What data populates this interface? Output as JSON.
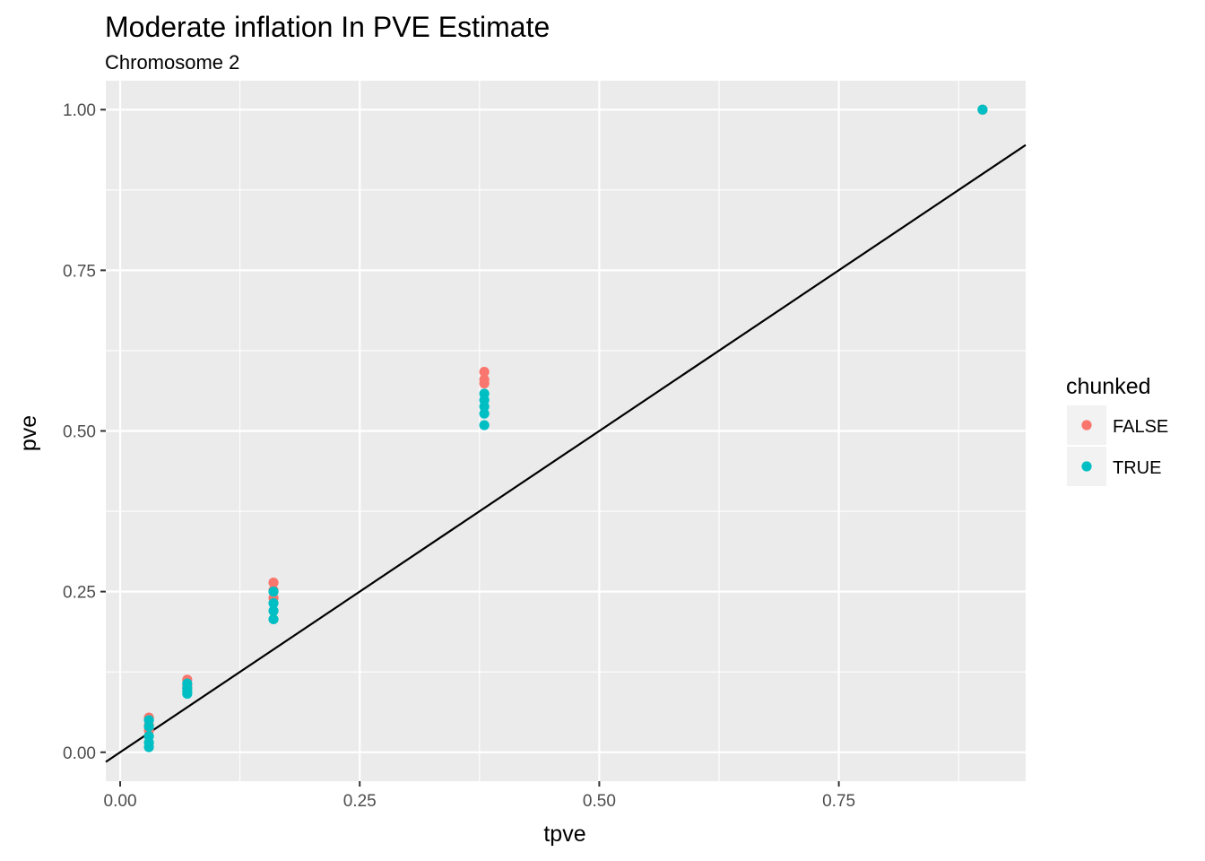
{
  "chart_data": {
    "type": "scatter",
    "title": "Moderate inflation In PVE Estimate",
    "subtitle": "Chromosome 2",
    "xlabel": "tpve",
    "ylabel": "pve",
    "xlim": [
      -0.015,
      0.945
    ],
    "ylim": [
      -0.045,
      1.045
    ],
    "x_ticks": [
      0.0,
      0.25,
      0.5,
      0.75
    ],
    "x_tick_labels": [
      "0.00",
      "0.25",
      "0.50",
      "0.75"
    ],
    "y_ticks": [
      0.0,
      0.25,
      0.5,
      0.75,
      1.0
    ],
    "y_tick_labels": [
      "0.00",
      "0.25",
      "0.50",
      "0.75",
      "1.00"
    ],
    "grid": true,
    "legend": {
      "title": "chunked",
      "position": "right"
    },
    "reference_line": {
      "intercept": 0,
      "slope": 1
    },
    "series": [
      {
        "name": "FALSE",
        "color": "#F8766D",
        "points": [
          {
            "x": 0.03,
            "y": 0.054
          },
          {
            "x": 0.03,
            "y": 0.042
          },
          {
            "x": 0.03,
            "y": 0.034
          },
          {
            "x": 0.07,
            "y": 0.113
          },
          {
            "x": 0.07,
            "y": 0.105
          },
          {
            "x": 0.07,
            "y": 0.1
          },
          {
            "x": 0.16,
            "y": 0.264
          },
          {
            "x": 0.16,
            "y": 0.252
          },
          {
            "x": 0.16,
            "y": 0.24
          },
          {
            "x": 0.38,
            "y": 0.592
          },
          {
            "x": 0.38,
            "y": 0.58
          },
          {
            "x": 0.38,
            "y": 0.574
          },
          {
            "x": 0.9,
            "y": 1.0
          }
        ]
      },
      {
        "name": "TRUE",
        "color": "#00BFC4",
        "points": [
          {
            "x": 0.03,
            "y": 0.05
          },
          {
            "x": 0.03,
            "y": 0.04
          },
          {
            "x": 0.03,
            "y": 0.025
          },
          {
            "x": 0.03,
            "y": 0.015
          },
          {
            "x": 0.03,
            "y": 0.008
          },
          {
            "x": 0.07,
            "y": 0.107
          },
          {
            "x": 0.07,
            "y": 0.1
          },
          {
            "x": 0.07,
            "y": 0.095
          },
          {
            "x": 0.07,
            "y": 0.091
          },
          {
            "x": 0.16,
            "y": 0.25
          },
          {
            "x": 0.16,
            "y": 0.232
          },
          {
            "x": 0.16,
            "y": 0.22
          },
          {
            "x": 0.16,
            "y": 0.207
          },
          {
            "x": 0.38,
            "y": 0.558
          },
          {
            "x": 0.38,
            "y": 0.548
          },
          {
            "x": 0.38,
            "y": 0.538
          },
          {
            "x": 0.38,
            "y": 0.527
          },
          {
            "x": 0.38,
            "y": 0.509
          },
          {
            "x": 0.9,
            "y": 1.0
          }
        ]
      }
    ]
  }
}
